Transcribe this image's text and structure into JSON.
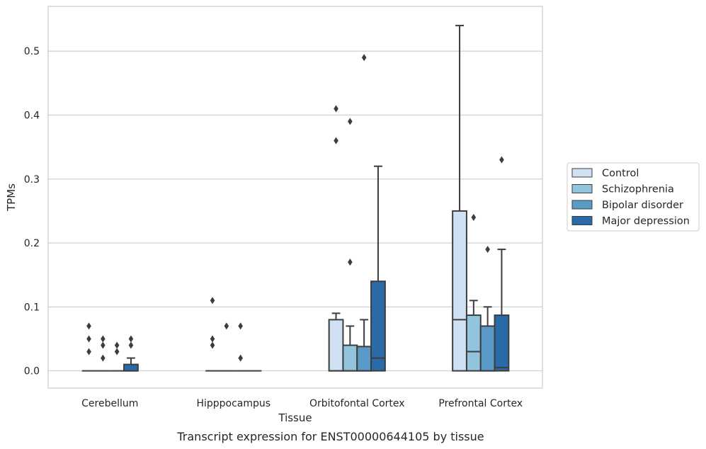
{
  "caption": "Transcript expression for ENST00000644105 by tissue",
  "chart_data": {
    "type": "box",
    "title": "",
    "xlabel": "Tissue",
    "ylabel": "TPMs",
    "ylim": [
      -0.027,
      0.57
    ],
    "yticks": [
      0.0,
      0.1,
      0.2,
      0.3,
      0.4,
      0.5
    ],
    "ytick_labels": [
      "0.0",
      "0.1",
      "0.2",
      "0.3",
      "0.4",
      "0.5"
    ],
    "grid": "horizontal",
    "legend_position": "right",
    "categories": [
      "Cerebellum",
      "Hipppocampus",
      "Orbitofontal Cortex",
      "Prefrontal Cortex"
    ],
    "series": [
      {
        "name": "Control",
        "color": "#cfe1f2",
        "boxes": [
          {
            "whislo": 0,
            "q1": 0,
            "med": 0,
            "q3": 0,
            "whishi": 0,
            "fliers": [
              0.03,
              0.05,
              0.07
            ]
          },
          {
            "whislo": 0,
            "q1": 0,
            "med": 0,
            "q3": 0,
            "whishi": 0,
            "fliers": [
              0.04,
              0.05,
              0.11
            ]
          },
          {
            "whislo": 0,
            "q1": 0,
            "med": 0,
            "q3": 0.08,
            "whishi": 0.09,
            "fliers": [
              0.36,
              0.41
            ]
          },
          {
            "whislo": 0,
            "q1": 0,
            "med": 0.08,
            "q3": 0.25,
            "whishi": 0.54,
            "fliers": []
          }
        ]
      },
      {
        "name": "Schizophrenia",
        "color": "#93c4de",
        "boxes": [
          {
            "whislo": 0,
            "q1": 0,
            "med": 0,
            "q3": 0,
            "whishi": 0,
            "fliers": [
              0.02,
              0.04,
              0.05
            ]
          },
          {
            "whislo": 0,
            "q1": 0,
            "med": 0,
            "q3": 0,
            "whishi": 0,
            "fliers": [
              0.07
            ]
          },
          {
            "whislo": 0,
            "q1": 0,
            "med": 0,
            "q3": 0.04,
            "whishi": 0.07,
            "fliers": [
              0.17,
              0.39
            ]
          },
          {
            "whislo": 0,
            "q1": 0,
            "med": 0.03,
            "q3": 0.087,
            "whishi": 0.11,
            "fliers": [
              0.24
            ]
          }
        ]
      },
      {
        "name": "Bipolar disorder",
        "color": "#5a9ac8",
        "boxes": [
          {
            "whislo": 0,
            "q1": 0,
            "med": 0,
            "q3": 0,
            "whishi": 0,
            "fliers": [
              0.03,
              0.04
            ]
          },
          {
            "whislo": 0,
            "q1": 0,
            "med": 0,
            "q3": 0,
            "whishi": 0,
            "fliers": [
              0.02,
              0.07
            ]
          },
          {
            "whislo": 0,
            "q1": 0,
            "med": 0,
            "q3": 0.038,
            "whishi": 0.08,
            "fliers": [
              0.49
            ]
          },
          {
            "whislo": 0,
            "q1": 0,
            "med": 0,
            "q3": 0.07,
            "whishi": 0.1,
            "fliers": [
              0.19
            ]
          }
        ]
      },
      {
        "name": "Major depression",
        "color": "#2b6aa8",
        "boxes": [
          {
            "whislo": 0,
            "q1": 0,
            "med": 0,
            "q3": 0.01,
            "whishi": 0.02,
            "fliers": [
              0.04,
              0.05
            ]
          },
          {
            "whislo": 0,
            "q1": 0,
            "med": 0,
            "q3": 0,
            "whishi": 0,
            "fliers": []
          },
          {
            "whislo": 0,
            "q1": 0,
            "med": 0.02,
            "q3": 0.14,
            "whishi": 0.32,
            "fliers": []
          },
          {
            "whislo": 0,
            "q1": 0,
            "med": 0.005,
            "q3": 0.087,
            "whishi": 0.19,
            "fliers": [
              0.33
            ]
          }
        ]
      }
    ]
  }
}
